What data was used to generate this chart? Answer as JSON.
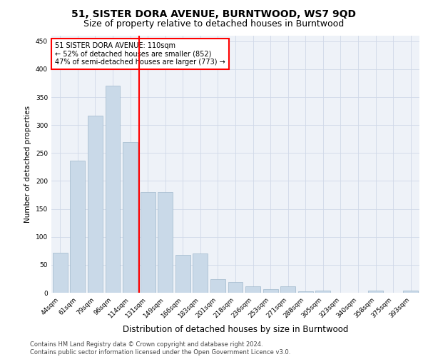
{
  "title": "51, SISTER DORA AVENUE, BURNTWOOD, WS7 9QD",
  "subtitle": "Size of property relative to detached houses in Burntwood",
  "xlabel": "Distribution of detached houses by size in Burntwood",
  "ylabel": "Number of detached properties",
  "categories": [
    "44sqm",
    "61sqm",
    "79sqm",
    "96sqm",
    "114sqm",
    "131sqm",
    "149sqm",
    "166sqm",
    "183sqm",
    "201sqm",
    "218sqm",
    "236sqm",
    "253sqm",
    "271sqm",
    "288sqm",
    "305sqm",
    "323sqm",
    "340sqm",
    "358sqm",
    "375sqm",
    "393sqm"
  ],
  "values": [
    72,
    236,
    317,
    370,
    270,
    180,
    180,
    68,
    70,
    24,
    19,
    11,
    6,
    11,
    3,
    4,
    0,
    0,
    4,
    0,
    4
  ],
  "bar_color": "#c9d9e8",
  "bar_edgecolor": "#a0b8cc",
  "vline_color": "red",
  "vline_x_index": 4.5,
  "annotation_text": "51 SISTER DORA AVENUE: 110sqm\n← 52% of detached houses are smaller (852)\n47% of semi-detached houses are larger (773) →",
  "annotation_box_color": "white",
  "annotation_box_edgecolor": "red",
  "ylim": [
    0,
    460
  ],
  "yticks": [
    0,
    50,
    100,
    150,
    200,
    250,
    300,
    350,
    400,
    450
  ],
  "grid_color": "#d0d8e8",
  "bg_color": "#eef2f8",
  "footer": "Contains HM Land Registry data © Crown copyright and database right 2024.\nContains public sector information licensed under the Open Government Licence v3.0.",
  "title_fontsize": 10,
  "subtitle_fontsize": 9,
  "xlabel_fontsize": 8.5,
  "ylabel_fontsize": 7.5,
  "tick_fontsize": 6.5,
  "annotation_fontsize": 7,
  "footer_fontsize": 6
}
